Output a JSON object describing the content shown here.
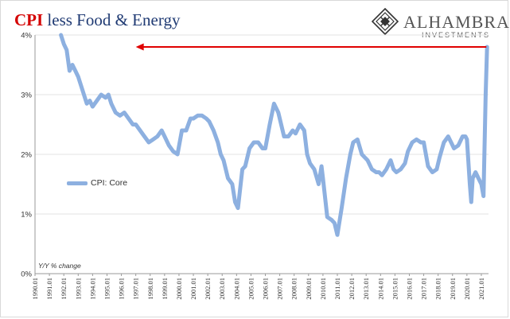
{
  "chart_data": {
    "type": "line",
    "title_highlight": "CPI",
    "title_rest": " less Food & Energy",
    "y_axis_note": "Y/Y % change",
    "xlabel": "",
    "ylabel": "",
    "ylim": [
      0,
      4
    ],
    "xlim": [
      1990.0,
      2021.5
    ],
    "y_ticks": [
      0,
      1,
      2,
      3,
      4
    ],
    "y_tick_labels": [
      "0%",
      "1%",
      "2%",
      "3%",
      "4%"
    ],
    "x_tick_labels": [
      "1990.01",
      "1991.01",
      "1992.01",
      "1993.01",
      "1994.01",
      "1995.01",
      "1996.01",
      "1997.01",
      "1998.01",
      "1999.01",
      "2000.01",
      "2001.01",
      "2002.01",
      "2003.01",
      "2004.01",
      "2005.01",
      "2006.01",
      "2007.01",
      "2008.01",
      "2009.01",
      "2010.01",
      "2011.01",
      "2012.01",
      "2013.01",
      "2014.01",
      "2015.01",
      "2016.01",
      "2017.01",
      "2018.01",
      "2019.01",
      "2020.01",
      "2021.01"
    ],
    "grid": "horizontal",
    "legend": "left-middle",
    "annotation": {
      "type": "arrow",
      "from_x": 2021.35,
      "to_x": 1997.0,
      "y": 3.8,
      "color": "#e00000"
    },
    "series": [
      {
        "name": "CPI: Core",
        "color": "#8db0e0",
        "x": [
          1991.8,
          1992.0,
          1992.2,
          1992.4,
          1992.6,
          1992.8,
          1993.0,
          1993.2,
          1993.4,
          1993.6,
          1993.8,
          1994.0,
          1994.3,
          1994.6,
          1994.9,
          1995.1,
          1995.3,
          1995.6,
          1995.9,
          1996.2,
          1996.5,
          1996.8,
          1997.0,
          1997.3,
          1997.6,
          1997.9,
          1998.2,
          1998.5,
          1998.8,
          1999.0,
          1999.3,
          1999.6,
          1999.9,
          2000.2,
          2000.5,
          2000.8,
          2001.0,
          2001.3,
          2001.6,
          2001.9,
          2002.1,
          2002.4,
          2002.7,
          2002.9,
          2003.1,
          2003.4,
          2003.7,
          2003.9,
          2004.1,
          2004.4,
          2004.6,
          2004.9,
          2005.2,
          2005.5,
          2005.8,
          2006.0,
          2006.3,
          2006.6,
          2006.9,
          2007.0,
          2007.3,
          2007.6,
          2007.9,
          2008.1,
          2008.4,
          2008.7,
          2008.9,
          2009.1,
          2009.4,
          2009.7,
          2009.9,
          2010.0,
          2010.3,
          2010.6,
          2010.8,
          2011.0,
          2011.3,
          2011.6,
          2011.9,
          2012.1,
          2012.4,
          2012.7,
          2012.9,
          2013.1,
          2013.4,
          2013.7,
          2013.9,
          2014.1,
          2014.4,
          2014.7,
          2014.9,
          2015.1,
          2015.4,
          2015.7,
          2015.9,
          2016.2,
          2016.5,
          2016.8,
          2017.0,
          2017.3,
          2017.6,
          2017.9,
          2018.1,
          2018.4,
          2018.7,
          2018.9,
          2019.1,
          2019.4,
          2019.7,
          2019.9,
          2020.0,
          2020.2,
          2020.3,
          2020.4,
          2020.6,
          2020.8,
          2021.0,
          2021.15,
          2021.3,
          2021.4
        ],
        "values": [
          4.0,
          3.85,
          3.75,
          3.4,
          3.5,
          3.4,
          3.3,
          3.15,
          3.0,
          2.85,
          2.9,
          2.8,
          2.9,
          3.0,
          2.95,
          3.0,
          2.85,
          2.7,
          2.65,
          2.7,
          2.6,
          2.5,
          2.5,
          2.4,
          2.3,
          2.2,
          2.25,
          2.3,
          2.4,
          2.3,
          2.15,
          2.05,
          2.0,
          2.4,
          2.4,
          2.6,
          2.6,
          2.65,
          2.65,
          2.6,
          2.55,
          2.4,
          2.2,
          2.0,
          1.9,
          1.6,
          1.5,
          1.2,
          1.1,
          1.75,
          1.8,
          2.1,
          2.2,
          2.2,
          2.1,
          2.1,
          2.5,
          2.85,
          2.7,
          2.6,
          2.3,
          2.3,
          2.4,
          2.35,
          2.5,
          2.4,
          2.0,
          1.85,
          1.75,
          1.5,
          1.8,
          1.6,
          0.95,
          0.9,
          0.85,
          0.65,
          1.1,
          1.6,
          2.0,
          2.2,
          2.25,
          2.0,
          1.95,
          1.9,
          1.75,
          1.7,
          1.7,
          1.65,
          1.75,
          1.9,
          1.75,
          1.7,
          1.75,
          1.85,
          2.05,
          2.2,
          2.25,
          2.2,
          2.2,
          1.8,
          1.7,
          1.75,
          1.95,
          2.2,
          2.3,
          2.2,
          2.1,
          2.15,
          2.3,
          2.3,
          2.25,
          1.5,
          1.2,
          1.6,
          1.7,
          1.6,
          1.5,
          1.3,
          3.0,
          3.8
        ]
      }
    ]
  },
  "logo": {
    "brand": "ALHAMBRA",
    "sub": "INVESTMENTS"
  }
}
